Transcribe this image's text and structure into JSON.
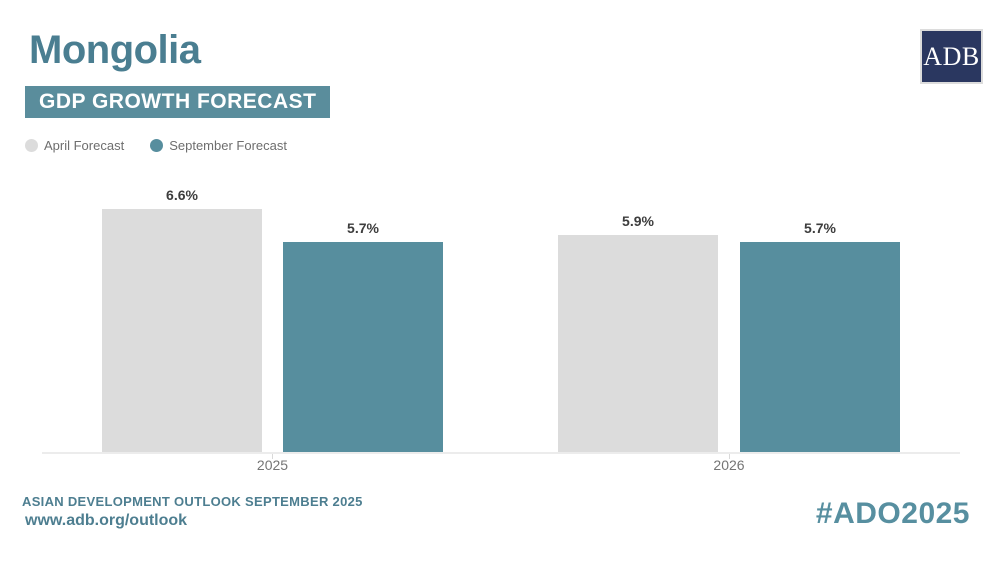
{
  "header": {
    "title": "Mongolia",
    "badge": "GDP GROWTH FORECAST"
  },
  "logo": {
    "label": "ADB"
  },
  "legend": {
    "items": [
      {
        "label": "April Forecast",
        "color": "#dcdcdc"
      },
      {
        "label": "September Forecast",
        "color": "#578e9e"
      }
    ]
  },
  "chart_data": {
    "type": "bar",
    "title": "Mongolia GDP Growth Forecast",
    "categories": [
      "2025",
      "2026"
    ],
    "series": [
      {
        "name": "April Forecast",
        "color": "#dcdcdc",
        "values": [
          6.6,
          5.9
        ],
        "value_labels": [
          "6.6%",
          "5.9%"
        ]
      },
      {
        "name": "September Forecast",
        "color": "#578e9e",
        "values": [
          5.7,
          5.7
        ],
        "value_labels": [
          "5.7%",
          "5.7%"
        ]
      }
    ],
    "unit": "%",
    "ylim": [
      0,
      7.5
    ],
    "grid": false,
    "legend_position": "top-left",
    "value_labels_shown": true
  },
  "footer": {
    "line1": "ASIAN DEVELOPMENT OUTLOOK SEPTEMBER 2025",
    "line2": "www.adb.org/outlook",
    "hashtag": "#ADO2025"
  },
  "colors": {
    "title_text": "#4a7e91",
    "badge_bg": "#5a8d9c",
    "badge_text": "#ffffff",
    "logo_bg": "#2a3760",
    "logo_text": "#ffffff",
    "bar_april": "#dcdcdc",
    "bar_september": "#578e9e",
    "value_label_text": "#3d3d3d",
    "category_label_text": "#757575",
    "legend_text": "#6e6e6e",
    "footer_text": "#4d7e90",
    "hashtag_text": "#578fa0",
    "axis_line": "#ececec"
  }
}
